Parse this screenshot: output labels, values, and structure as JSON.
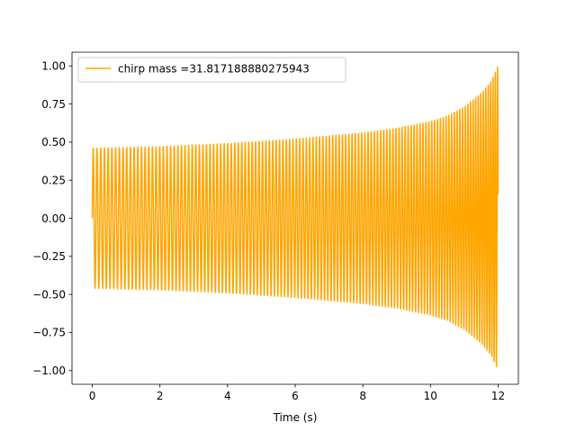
{
  "chart_data": {
    "type": "line",
    "title": "",
    "xlabel": "Time (s)",
    "ylabel": "",
    "xlim": [
      -0.6,
      12.6
    ],
    "ylim": [
      -1.09,
      1.09
    ],
    "x_ticks": [
      0,
      2,
      4,
      6,
      8,
      10,
      12
    ],
    "x_tick_labels": [
      "0",
      "2",
      "4",
      "6",
      "8",
      "10",
      "12"
    ],
    "y_ticks": [
      -1.0,
      -0.75,
      -0.5,
      -0.25,
      0.0,
      0.25,
      0.5,
      0.75,
      1.0
    ],
    "y_tick_labels": [
      "−1.00",
      "−0.75",
      "−0.50",
      "−0.25",
      "0.00",
      "0.25",
      "0.50",
      "0.75",
      "1.00"
    ],
    "grid": false,
    "legend_position": "top-left",
    "series": [
      {
        "name": "chirp mass =31.817188880275943",
        "color": "#ffa500",
        "signal": "chirp",
        "x_start": 0,
        "x_end": 12,
        "envelope": {
          "t": [
            0,
            0.1,
            2,
            4,
            6,
            8,
            9,
            10,
            10.5,
            11,
            11.5,
            11.8,
            12.0
          ],
          "amplitude": [
            0.46,
            0.46,
            0.47,
            0.49,
            0.52,
            0.56,
            0.59,
            0.635,
            0.67,
            0.73,
            0.82,
            0.9,
            1.0
          ]
        },
        "frequency_hz": {
          "t": [
            0,
            4,
            8,
            10,
            11,
            11.6,
            12.0
          ],
          "f": [
            9.0,
            9.6,
            10.6,
            11.6,
            12.6,
            13.6,
            15.0
          ]
        }
      }
    ]
  }
}
